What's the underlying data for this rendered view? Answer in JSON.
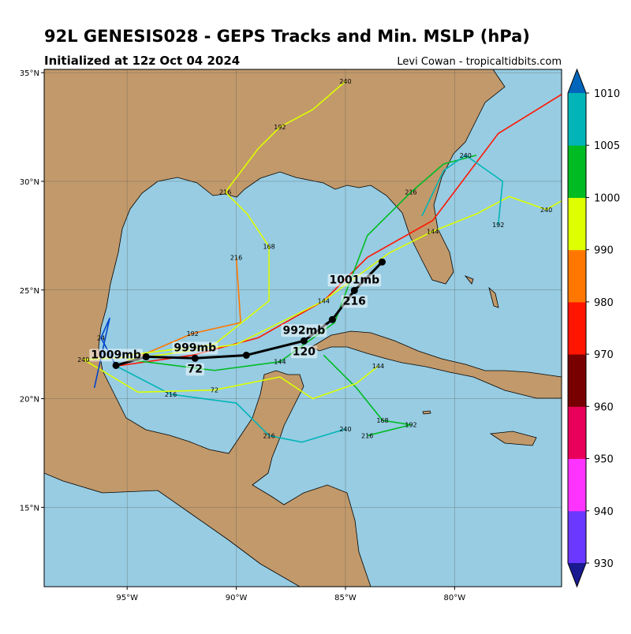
{
  "title": "92L GENESIS028 - GEPS Tracks and Min. MSLP (hPa)",
  "subtitle": "Initialized at 12z Oct 04 2024",
  "credit": "Levi Cowan - tropicaltidbits.com",
  "map": {
    "lonlim": [
      -98.8,
      -75.1
    ],
    "latlim": [
      11.35,
      35.15
    ],
    "lonticks": [
      {
        "value": -95,
        "label": "95°W"
      },
      {
        "value": -90,
        "label": "90°W"
      },
      {
        "value": -85,
        "label": "85°W"
      },
      {
        "value": -80,
        "label": "80°W"
      }
    ],
    "latticks": [
      {
        "value": 15,
        "label": "15°N"
      },
      {
        "value": 20,
        "label": "20°N"
      },
      {
        "value": 25,
        "label": "25°N"
      },
      {
        "value": 30,
        "label": "30°N"
      },
      {
        "value": 35,
        "label": "35°N"
      }
    ],
    "grid": true
  },
  "colorbar": {
    "levels": [
      930,
      940,
      950,
      960,
      970,
      980,
      990,
      1000,
      1005,
      1010
    ],
    "colors": [
      "#6a38ff",
      "#ff33ff",
      "#e8005a",
      "#780000",
      "#ff1500",
      "#ff7700",
      "#ddff00",
      "#00bb22",
      "#00b4b8"
    ],
    "under_color": "#1a1a90",
    "over_color": "#0066bb"
  },
  "tracks": [
    {
      "color": "#ff1500",
      "lon": [
        -95.5,
        -92,
        -89,
        -86,
        -84,
        -81,
        -78,
        -75.1
      ],
      "lat": [
        21.5,
        22,
        22.8,
        24.5,
        26.5,
        28.2,
        32.2,
        34
      ],
      "hours": [
        null,
        null,
        null,
        null,
        null,
        null,
        null,
        null
      ]
    },
    {
      "color": "#ff7700",
      "lon": [
        -95.5,
        -92,
        -89.8,
        -90
      ],
      "lat": [
        21.5,
        23,
        23.5,
        26.5
      ],
      "hours": [
        null,
        192,
        null,
        216
      ]
    },
    {
      "color": "#ddff00",
      "lon": [
        -95,
        -91,
        -88.5,
        -88.5,
        -89.5,
        -90.5,
        -89,
        -88,
        -86.5,
        -85
      ],
      "lat": [
        22,
        22.5,
        24.5,
        27,
        28.5,
        29.5,
        31.5,
        32.5,
        33.3,
        34.6
      ],
      "hours": [
        null,
        null,
        null,
        168,
        null,
        216,
        null,
        192,
        null,
        240
      ]
    },
    {
      "color": "#00bb22",
      "lon": [
        -95,
        -91,
        -88,
        -85.5,
        -84,
        -82,
        -80.5,
        -79
      ],
      "lat": [
        21.8,
        21.3,
        21.7,
        23.5,
        27.5,
        29.5,
        30.8,
        31.2
      ],
      "hours": [
        null,
        null,
        144,
        null,
        null,
        216,
        null,
        null
      ]
    },
    {
      "color": "#ddff00",
      "lon": [
        -95,
        -90,
        -86,
        -83,
        -81,
        -79,
        -77.5,
        -75.8,
        -75.1
      ],
      "lat": [
        21.8,
        22.5,
        24.5,
        26.7,
        27.7,
        28.5,
        29.3,
        28.7,
        29.1
      ],
      "hours": [
        null,
        null,
        144,
        null,
        144,
        null,
        null,
        240,
        null
      ]
    },
    {
      "color": "#00b4b8",
      "lon": [
        -95.5,
        -93,
        -90,
        -88.5,
        -87,
        -85
      ],
      "lat": [
        21.5,
        20.2,
        19.8,
        18.3,
        18,
        18.6
      ],
      "hours": [
        null,
        216,
        null,
        216,
        null,
        240
      ]
    },
    {
      "color": "#00bb22",
      "lon": [
        -86,
        -84.5,
        -83.3,
        -82,
        -84
      ],
      "lat": [
        22,
        20.5,
        19,
        18.8,
        18.3
      ],
      "hours": [
        null,
        null,
        168,
        192,
        216
      ]
    },
    {
      "color": "#00b4b8",
      "lon": [
        -81.5,
        -80.5,
        -79.5,
        -77.8,
        -78
      ],
      "lat": [
        28.4,
        30.5,
        31.2,
        30,
        28
      ],
      "hours": [
        null,
        null,
        240,
        null,
        192
      ]
    },
    {
      "color": "#ddff00",
      "lon": [
        -95,
        -97,
        -94.5,
        -91,
        -88,
        -86.5,
        -84.5,
        -83.5
      ],
      "lat": [
        21.9,
        21.8,
        20.3,
        20.4,
        21,
        20,
        20.7,
        21.5
      ],
      "hours": [
        null,
        240,
        null,
        72,
        null,
        null,
        null,
        144
      ]
    },
    {
      "color": "#0044cc",
      "lon": [
        -95.5,
        -96.2,
        -95.8,
        -96.5
      ],
      "lat": [
        21.5,
        22.8,
        23.7,
        20.5
      ],
      "hours": [
        null,
        24,
        null,
        null
      ]
    }
  ],
  "mean_track": {
    "color": "#000000",
    "lon": [
      -95.51,
      -94.13,
      -91.89,
      -89.54,
      -86.9,
      -85.6,
      -84.59,
      -83.32
    ],
    "lat": [
      21.53,
      21.93,
      21.86,
      22.0,
      22.66,
      23.64,
      24.98,
      26.29
    ],
    "pressure_labels": [
      "1009mb",
      null,
      "999mb",
      null,
      "992mb",
      null,
      "1001mb",
      null
    ],
    "hour_labels": [
      null,
      null,
      "72",
      null,
      "120",
      null,
      "216",
      null
    ]
  }
}
